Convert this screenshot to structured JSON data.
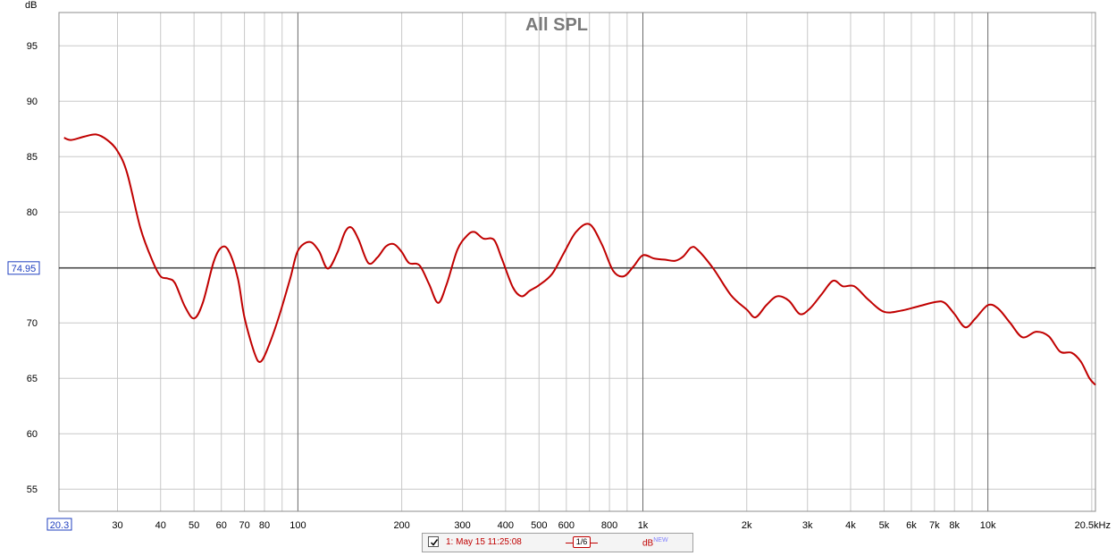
{
  "chart_data": {
    "type": "line",
    "title": "All SPL",
    "ylabel": "dB",
    "xscale": "log",
    "xlim": [
      20.3,
      20500
    ],
    "ylim": [
      53,
      98
    ],
    "yticks": [
      55,
      60,
      65,
      70,
      75,
      80,
      85,
      90,
      95
    ],
    "xticks": [
      {
        "value": 20.3,
        "label": "20.3"
      },
      {
        "value": 30,
        "label": "30"
      },
      {
        "value": 40,
        "label": "40"
      },
      {
        "value": 50,
        "label": "50"
      },
      {
        "value": 60,
        "label": "60"
      },
      {
        "value": 70,
        "label": "70"
      },
      {
        "value": 80,
        "label": "80"
      },
      {
        "value": 100,
        "label": "100"
      },
      {
        "value": 200,
        "label": "200"
      },
      {
        "value": 300,
        "label": "300"
      },
      {
        "value": 400,
        "label": "400"
      },
      {
        "value": 500,
        "label": "500"
      },
      {
        "value": 600,
        "label": "600"
      },
      {
        "value": 800,
        "label": "800"
      },
      {
        "value": 1000,
        "label": "1k"
      },
      {
        "value": 2000,
        "label": "2k"
      },
      {
        "value": 3000,
        "label": "3k"
      },
      {
        "value": 4000,
        "label": "4k"
      },
      {
        "value": 5000,
        "label": "5k"
      },
      {
        "value": 6000,
        "label": "6k"
      },
      {
        "value": 7000,
        "label": "7k"
      },
      {
        "value": 8000,
        "label": "8k"
      },
      {
        "value": 10000,
        "label": "10k"
      },
      {
        "value": 20500,
        "label": "20.5kHz"
      }
    ],
    "cursor": {
      "value": 74.95,
      "label": "74.95"
    },
    "grid": true,
    "series": [
      {
        "name": "1: May 15 11:25:08",
        "color": "#c00000",
        "points": [
          [
            21,
            86.7
          ],
          [
            22,
            86.5
          ],
          [
            24,
            86.8
          ],
          [
            26,
            87.0
          ],
          [
            28,
            86.5
          ],
          [
            30,
            85.5
          ],
          [
            32,
            83.5
          ],
          [
            35,
            78.5
          ],
          [
            38,
            75.5
          ],
          [
            40,
            74.2
          ],
          [
            42,
            74.0
          ],
          [
            44,
            73.6
          ],
          [
            47,
            71.5
          ],
          [
            50,
            70.4
          ],
          [
            53,
            71.8
          ],
          [
            57,
            75.5
          ],
          [
            60,
            76.8
          ],
          [
            63,
            76.5
          ],
          [
            67,
            74.0
          ],
          [
            70,
            70.5
          ],
          [
            75,
            67.2
          ],
          [
            78,
            66.5
          ],
          [
            82,
            67.8
          ],
          [
            88,
            70.5
          ],
          [
            95,
            74.0
          ],
          [
            100,
            76.5
          ],
          [
            108,
            77.3
          ],
          [
            115,
            76.5
          ],
          [
            122,
            74.9
          ],
          [
            130,
            76.3
          ],
          [
            137,
            78.2
          ],
          [
            143,
            78.6
          ],
          [
            150,
            77.5
          ],
          [
            160,
            75.4
          ],
          [
            170,
            75.9
          ],
          [
            180,
            76.9
          ],
          [
            190,
            77.1
          ],
          [
            200,
            76.4
          ],
          [
            210,
            75.4
          ],
          [
            225,
            75.2
          ],
          [
            240,
            73.5
          ],
          [
            255,
            71.8
          ],
          [
            270,
            73.5
          ],
          [
            290,
            76.6
          ],
          [
            310,
            77.9
          ],
          [
            325,
            78.2
          ],
          [
            345,
            77.6
          ],
          [
            370,
            77.5
          ],
          [
            390,
            75.8
          ],
          [
            420,
            73.2
          ],
          [
            445,
            72.4
          ],
          [
            470,
            72.9
          ],
          [
            500,
            73.4
          ],
          [
            545,
            74.4
          ],
          [
            590,
            76.3
          ],
          [
            640,
            78.2
          ],
          [
            700,
            78.9
          ],
          [
            760,
            77.1
          ],
          [
            820,
            74.7
          ],
          [
            880,
            74.2
          ],
          [
            940,
            75.1
          ],
          [
            1000,
            76.1
          ],
          [
            1080,
            75.8
          ],
          [
            1160,
            75.7
          ],
          [
            1240,
            75.6
          ],
          [
            1310,
            76.0
          ],
          [
            1380,
            76.8
          ],
          [
            1440,
            76.6
          ],
          [
            1600,
            74.9
          ],
          [
            1800,
            72.5
          ],
          [
            2000,
            71.2
          ],
          [
            2120,
            70.5
          ],
          [
            2280,
            71.6
          ],
          [
            2450,
            72.4
          ],
          [
            2650,
            72.0
          ],
          [
            2850,
            70.8
          ],
          [
            3050,
            71.3
          ],
          [
            3300,
            72.6
          ],
          [
            3560,
            73.8
          ],
          [
            3800,
            73.3
          ],
          [
            4100,
            73.3
          ],
          [
            4500,
            72.1
          ],
          [
            5000,
            71.0
          ],
          [
            5600,
            71.1
          ],
          [
            6300,
            71.5
          ],
          [
            7100,
            71.9
          ],
          [
            7500,
            71.8
          ],
          [
            8000,
            70.8
          ],
          [
            8600,
            69.6
          ],
          [
            9200,
            70.4
          ],
          [
            10000,
            71.6
          ],
          [
            10700,
            71.3
          ],
          [
            11600,
            70.0
          ],
          [
            12600,
            68.7
          ],
          [
            13800,
            69.2
          ],
          [
            15000,
            68.8
          ],
          [
            16200,
            67.4
          ],
          [
            17500,
            67.3
          ],
          [
            18600,
            66.5
          ],
          [
            19700,
            65.0
          ],
          [
            20500,
            64.4
          ]
        ]
      }
    ]
  },
  "legend": {
    "series_label": "1: May 15 11:25:08",
    "smoothing": "1/6",
    "unit_label": "dB",
    "unit_badge": "NEW"
  }
}
